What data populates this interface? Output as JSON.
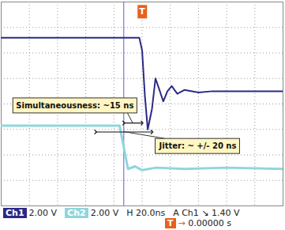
{
  "chart_data": {
    "type": "line",
    "tick_labels": false,
    "grid": true,
    "xlim": [
      -100,
      100
    ],
    "xticks": [
      -100,
      -80,
      -60,
      -40,
      -20,
      0,
      20,
      40,
      60,
      80,
      100
    ],
    "ylim": [
      -4,
      4
    ],
    "yticks": [
      -4,
      -3,
      -2,
      -1,
      0,
      1,
      2,
      3,
      4
    ],
    "series": [
      {
        "name": "Ch1",
        "color": "#2b2a86",
        "x": [
          -100,
          -2,
          0,
          2,
          4,
          7,
          9.5,
          12,
          15,
          18,
          21,
          25,
          30,
          40,
          50,
          70,
          100
        ],
        "values": [
          2.6,
          2.6,
          2.1,
          0.3,
          -1.0,
          -0.2,
          1.0,
          0.6,
          0.1,
          0.5,
          0.7,
          0.4,
          0.55,
          0.45,
          0.5,
          0.5,
          0.5
        ]
      },
      {
        "name": "Ch2",
        "color": "#8fd6dc",
        "x": [
          -100,
          -16,
          -13,
          -10,
          -5,
          0,
          10,
          30,
          60,
          100
        ],
        "values": [
          -0.85,
          -0.85,
          -1.7,
          -2.55,
          -2.45,
          -2.6,
          -2.5,
          -2.55,
          -2.5,
          -2.55
        ]
      }
    ],
    "cursor": {
      "x": -13,
      "color": "#6a5acd"
    },
    "trigger": {
      "label": "T",
      "x": 0,
      "color": "#e8601c"
    },
    "annotations": [
      {
        "text": "Simultaneousness: ~15 ns",
        "x1": -13,
        "x2": 0,
        "y": -0.75
      },
      {
        "text": "Jitter: ~ +/- 20 ns",
        "x1": -33,
        "x2": 7,
        "y": -1.1
      }
    ],
    "readouts": {
      "ch1": "Ch1",
      "ch1_scale": "2.00 V",
      "ch2": "Ch2",
      "ch2_scale": "2.00 V",
      "horizontal": "H 20.0ns",
      "trigger_source": "A Ch1",
      "trigger_slope": "↘",
      "trigger_level": "1.40 V",
      "position_marker": "T",
      "position_arrow": "→",
      "position": "0.00000 s"
    }
  }
}
